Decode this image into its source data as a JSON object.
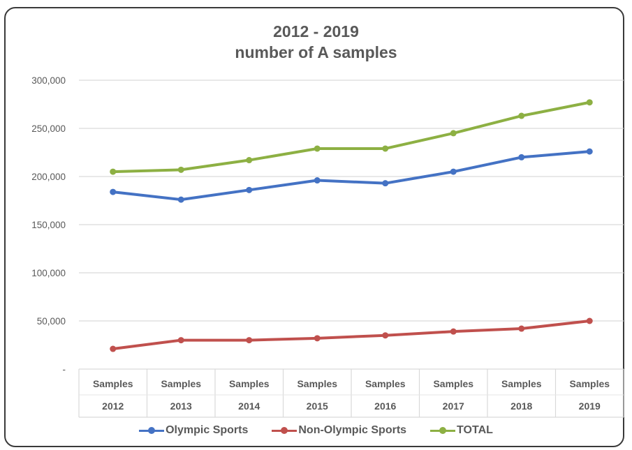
{
  "chart_data": {
    "type": "line",
    "title": "2012 - 2019",
    "subtitle": "number of A samples",
    "categories": [
      [
        "Samples",
        "2012"
      ],
      [
        "Samples",
        "2013"
      ],
      [
        "Samples",
        "2014"
      ],
      [
        "Samples",
        "2015"
      ],
      [
        "Samples",
        "2016"
      ],
      [
        "Samples",
        "2017"
      ],
      [
        "Samples",
        "2018"
      ],
      [
        "Samples",
        "2019"
      ]
    ],
    "yticks": [
      "-",
      "50,000",
      "100,000",
      "150,000",
      "200,000",
      "250,000",
      "300,000"
    ],
    "ylim": [
      0,
      300000
    ],
    "grid": true,
    "legend_position": "bottom",
    "series": [
      {
        "name": "Olympic Sports",
        "color": "#4472C4",
        "values": [
          184000,
          176000,
          186000,
          196000,
          193000,
          205000,
          220000,
          226000
        ]
      },
      {
        "name": "Non-Olympic Sports",
        "color": "#C0504D",
        "values": [
          21000,
          30000,
          30000,
          32000,
          35000,
          39000,
          42000,
          50000
        ]
      },
      {
        "name": "TOTAL",
        "color": "#8DB043",
        "values": [
          205000,
          207000,
          217000,
          229000,
          229000,
          245000,
          263000,
          277000
        ]
      }
    ]
  }
}
